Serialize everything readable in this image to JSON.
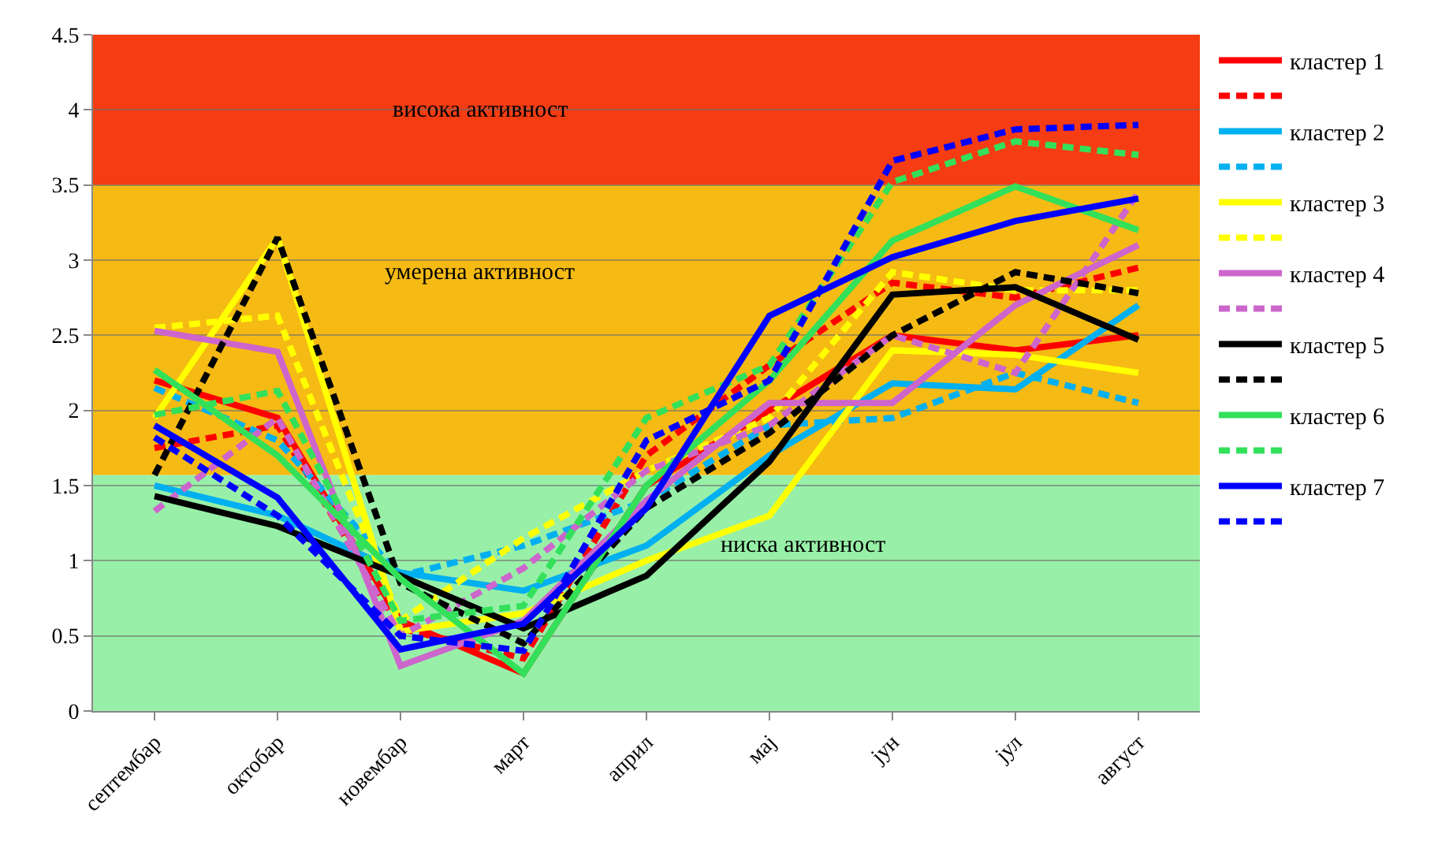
{
  "chart_data": {
    "type": "line",
    "categories": [
      "септембар",
      "октобар",
      "новембар",
      "март",
      "април",
      "мај",
      "јун",
      "јул",
      "август"
    ],
    "ylim": [
      0,
      4.5
    ],
    "yticks": [
      0,
      0.5,
      1,
      1.5,
      2,
      2.5,
      3,
      3.5,
      4,
      4.5
    ],
    "grid": "y",
    "legend": "right",
    "marker": "none",
    "bands": [
      {
        "axis": "y",
        "from": 3.5,
        "to": 4.5,
        "label": "висока активност",
        "color": "#f53c12"
      },
      {
        "axis": "y",
        "from": 1.57,
        "to": 3.5,
        "label": "умерена активност",
        "color": "#f5ba14"
      },
      {
        "axis": "y",
        "from": 0,
        "to": 1.57,
        "label": "ниска активност",
        "color": "#98f0a8"
      }
    ],
    "series": [
      {
        "name": "кластер 1",
        "color": "#ff0000",
        "line_style": "solid",
        "values": [
          2.2,
          1.95,
          0.6,
          0.25,
          1.5,
          2.0,
          2.5,
          2.4,
          2.5
        ]
      },
      {
        "color": "#ff0000",
        "line_style": "dashed",
        "values": [
          1.75,
          1.9,
          0.55,
          0.35,
          1.7,
          2.3,
          2.85,
          2.75,
          2.95
        ]
      },
      {
        "name": "кластер 2",
        "color": "#00b0f0",
        "line_style": "solid",
        "values": [
          1.5,
          1.3,
          0.92,
          0.8,
          1.1,
          1.7,
          2.18,
          2.14,
          2.7
        ]
      },
      {
        "color": "#00b0f0",
        "line_style": "dashed",
        "values": [
          2.15,
          1.8,
          0.9,
          1.1,
          1.4,
          1.9,
          1.95,
          2.25,
          2.05
        ]
      },
      {
        "name": "кластер 3",
        "color": "#ffff00",
        "line_style": "solid",
        "values": [
          1.95,
          3.15,
          0.53,
          0.65,
          1.0,
          1.3,
          2.4,
          2.37,
          2.25
        ]
      },
      {
        "color": "#ffff00",
        "line_style": "dashed",
        "values": [
          2.55,
          2.63,
          0.6,
          1.15,
          1.6,
          1.95,
          2.92,
          2.8,
          2.8
        ]
      },
      {
        "name": "кластер 4",
        "color": "#cc66cc",
        "line_style": "solid",
        "values": [
          2.53,
          2.39,
          0.3,
          0.6,
          1.4,
          2.05,
          2.05,
          2.7,
          3.1
        ]
      },
      {
        "color": "#cc66cc",
        "line_style": "dashed",
        "values": [
          1.33,
          1.95,
          0.5,
          0.95,
          1.6,
          1.9,
          2.5,
          2.25,
          3.45
        ]
      },
      {
        "name": "кластер 5",
        "color": "#000000",
        "line_style": "solid",
        "values": [
          1.43,
          1.23,
          0.9,
          0.55,
          0.9,
          1.66,
          2.77,
          2.82,
          2.47
        ]
      },
      {
        "color": "#000000",
        "line_style": "dashed",
        "values": [
          1.57,
          3.15,
          0.85,
          0.45,
          1.35,
          1.85,
          2.5,
          2.92,
          2.78
        ]
      },
      {
        "name": "кластер 6",
        "color": "#33e05a",
        "line_style": "solid",
        "values": [
          2.27,
          1.7,
          0.88,
          0.25,
          1.5,
          2.2,
          3.13,
          3.49,
          3.2
        ]
      },
      {
        "color": "#33e05a",
        "line_style": "dashed",
        "values": [
          1.97,
          2.13,
          0.6,
          0.7,
          1.95,
          2.3,
          3.52,
          3.79,
          3.7
        ]
      },
      {
        "name": "кластер 7",
        "color": "#0000ff",
        "line_style": "solid",
        "values": [
          1.9,
          1.42,
          0.41,
          0.58,
          1.35,
          2.63,
          3.02,
          3.26,
          3.41
        ]
      },
      {
        "color": "#0000ff",
        "line_style": "dashed",
        "values": [
          1.82,
          1.3,
          0.5,
          0.4,
          1.8,
          2.2,
          3.66,
          3.87,
          3.9
        ]
      }
    ]
  }
}
